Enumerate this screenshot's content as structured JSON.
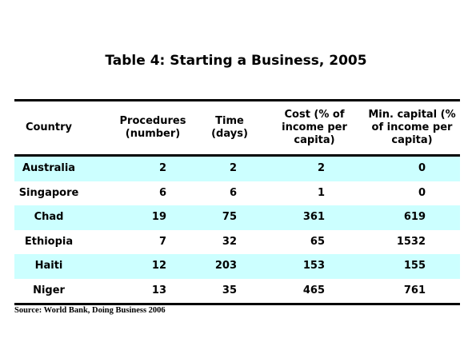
{
  "title": "Table 4: Starting a Business, 2005",
  "headers": {
    "country": "Country",
    "procedures": "Procedures (number)",
    "time": "Time (days)",
    "cost": "Cost (% of income per capita)",
    "capital": "Min. capital (% of income per capita)"
  },
  "rows": [
    {
      "country": "Australia",
      "procedures": "2",
      "time": "2",
      "cost": "2",
      "capital": "0"
    },
    {
      "country": "Singapore",
      "procedures": "6",
      "time": "6",
      "cost": "1",
      "capital": "0"
    },
    {
      "country": "Chad",
      "procedures": "19",
      "time": "75",
      "cost": "361",
      "capital": "619"
    },
    {
      "country": "Ethiopia",
      "procedures": "7",
      "time": "32",
      "cost": "65",
      "capital": "1532"
    },
    {
      "country": "Haiti",
      "procedures": "12",
      "time": "203",
      "cost": "153",
      "capital": "155"
    },
    {
      "country": "Niger",
      "procedures": "13",
      "time": "35",
      "cost": "465",
      "capital": "761"
    }
  ],
  "source": "Source: World Bank, Doing Business 2006",
  "colors": {
    "row_shade": "#ccffff",
    "rule": "#000000"
  }
}
